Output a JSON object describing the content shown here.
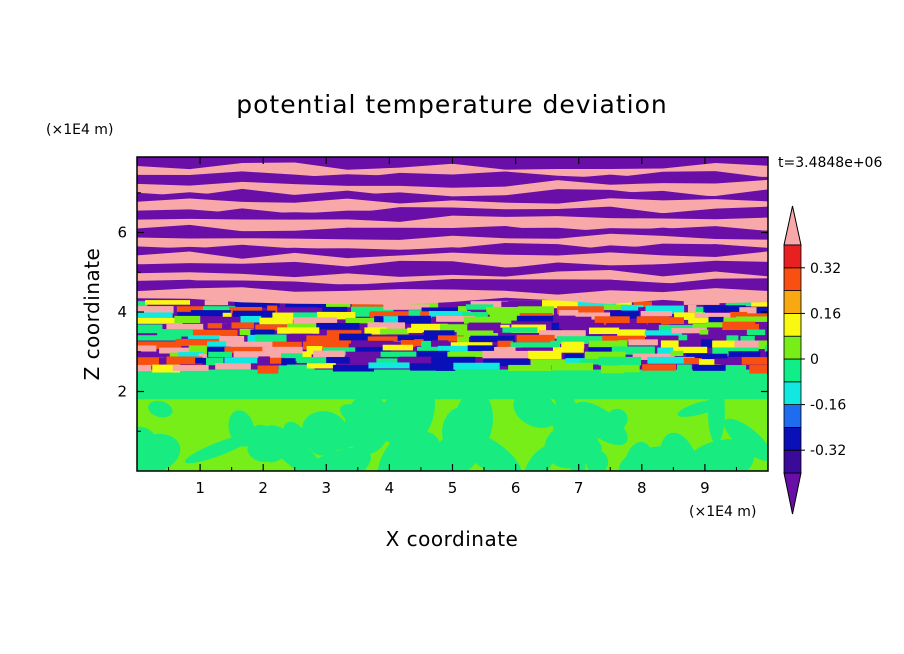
{
  "chart_data": {
    "type": "heatmap",
    "title": "potential temperature deviation",
    "xlabel": "X coordinate",
    "ylabel": "Z coordinate",
    "x_unit": "(×1E4 m)",
    "y_unit": "(×1E4 m)",
    "time_label": "t=3.4848e+06",
    "xlim": [
      0,
      10
    ],
    "ylim": [
      0,
      7.9
    ],
    "x_ticks": [
      "1",
      "2",
      "3",
      "4",
      "5",
      "6",
      "7",
      "8",
      "9"
    ],
    "x_tick_values": [
      1,
      2,
      3,
      4,
      5,
      6,
      7,
      8,
      9
    ],
    "y_ticks": [
      "2",
      "4",
      "6"
    ],
    "y_tick_values": [
      2,
      4,
      6
    ],
    "colorbar": {
      "labels": [
        "0.32",
        "0.16",
        "0",
        "-0.16",
        "-0.32"
      ],
      "label_values": [
        0.32,
        0.16,
        0,
        -0.16,
        -0.32
      ],
      "levels": [
        -0.4,
        -0.32,
        -0.24,
        -0.16,
        -0.08,
        0,
        0.08,
        0.16,
        0.24,
        0.32,
        0.4
      ],
      "colors": [
        "#6a0ea8",
        "#3a0a9a",
        "#0a10b8",
        "#1e6cf0",
        "#10e8e0",
        "#10ee88",
        "#78ee18",
        "#f8f810",
        "#f8a810",
        "#f85010",
        "#e82020",
        "#f8a8a8"
      ],
      "extend": "both"
    },
    "bands": [
      {
        "z_bottom": 0,
        "z_top": 1.8,
        "pattern": "cells",
        "colors": [
          "#78ee18",
          "#18ec80"
        ]
      },
      {
        "z_bottom": 1.8,
        "z_top": 2.05,
        "pattern": "solid",
        "colors": [
          "#18ec80"
        ]
      },
      {
        "z_bottom": 2.05,
        "z_top": 2.55,
        "pattern": "solid",
        "colors": [
          "#18ec80"
        ]
      },
      {
        "z_bottom": 2.55,
        "z_top": 4.3,
        "pattern": "turbulent",
        "colors": [
          "#6a0ea8",
          "#18ec80",
          "#10e8e0",
          "#78ee18",
          "#f8f810",
          "#f85010",
          "#0a10b8",
          "#f8a8a8"
        ]
      },
      {
        "z_bottom": 4.3,
        "z_top": 7.9,
        "pattern": "stripes",
        "colors": [
          "#6a0ea8",
          "#f8a8a8"
        ]
      }
    ]
  }
}
